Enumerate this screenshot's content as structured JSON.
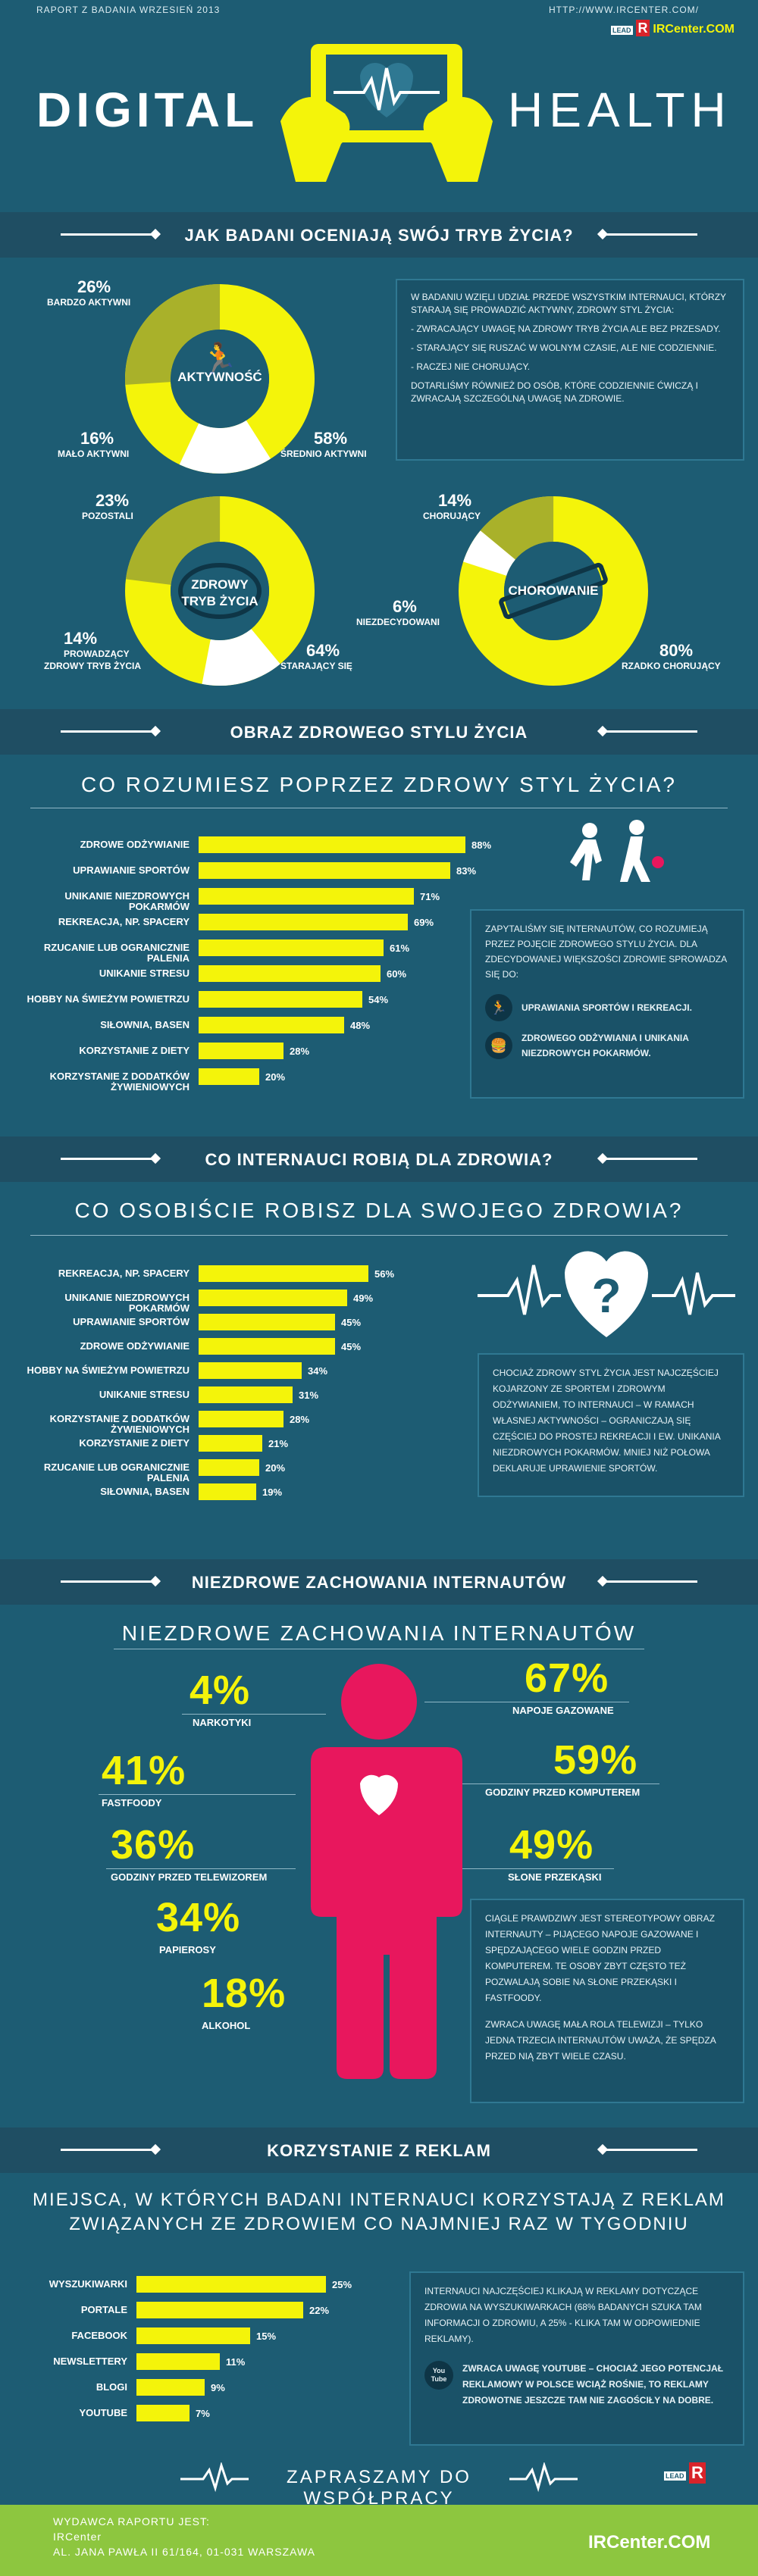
{
  "header": {
    "report_label": "RAPORT Z BADANIA WRZESIEŃ 2013",
    "url": "HTTP://WWW.IRCENTER.COM/",
    "lead": "LEAD",
    "brand": "IRCenter.COM",
    "title_left": "DIGITAL",
    "title_right": "HEALTH"
  },
  "colors": {
    "background": "#1d5c73",
    "accent": "#f4f40a",
    "green_olive": "#a9b12a",
    "heart_red": "#e8175d",
    "footer_green": "#8dc63f"
  },
  "section1": {
    "banner": "JAK BADANI OCENIAJĄ SWÓJ TRYB ŻYCIA?",
    "pie1": {
      "center_label": "AKTYWNOŚĆ",
      "slices": [
        {
          "pct": "26%",
          "label": "BARDZO AKTYWNI",
          "value": 26
        },
        {
          "pct": "16%",
          "label": "MAŁO AKTYWNI",
          "value": 16
        },
        {
          "pct": "58%",
          "label": "ŚREDNIO AKTYWNI",
          "value": 58
        }
      ]
    },
    "info_box": {
      "p1": "W BADANIU WZIĘLI UDZIAŁ PRZEDE  WSZYSTKIM INTERNAUCI, KTÓRZY STARAJĄ SIĘ PROWADZIĆ AKTYWNY, ZDROWY STYL ŻYCIA:",
      "p2": "- ZWRACAJĄCY UWAGĘ NA ZDROWY TRYB ŻYCIA ALE BEZ PRZESADY.",
      "p3": "- STARAJĄCY SIĘ RUSZAĆ W WOLNYM CZASIE, ALE NIE CODZIENNIE.",
      "p4": "- RACZEJ NIE CHORUJĄCY.",
      "p5": "DOTARLIŚMY RÓWNIEŻ DO OSÓB, KTÓRE CODZIENNIE ĆWICZĄ I ZWRACAJĄ SZCZEGÓLNĄ UWAGĘ NA ZDROWIE."
    },
    "pie2": {
      "center_label_1": "ZDROWY",
      "center_label_2": "TRYB ŻYCIA",
      "slices": [
        {
          "pct": "23%",
          "label": "POZOSTALI",
          "value": 23
        },
        {
          "pct": "14%",
          "label_1": "PROWADZĄCY",
          "label_2": "ZDROWY TRYB ŻYCIA",
          "value": 14
        },
        {
          "pct": "64%",
          "label": "STARAJĄCY SIĘ",
          "value": 64
        }
      ]
    },
    "pie3": {
      "center_label": "CHOROWANIE",
      "slices": [
        {
          "pct": "14%",
          "label": "CHORUJĄCY",
          "value": 14
        },
        {
          "pct": "6%",
          "label": "NIEZDECYDOWANI",
          "value": 6
        },
        {
          "pct": "80%",
          "label": "RZADKO CHORUJĄCY",
          "value": 80
        }
      ]
    }
  },
  "section2": {
    "banner": "OBRAZ ZDROWEGO STYLU ŻYCIA",
    "subheading": "CO ROZUMIESZ POPRZEZ ZDROWY STYL ŻYCIA?",
    "info_box": {
      "text": "ZAPYTALIŚMY SIĘ INTERNAUTÓW, CO ROZUMIEJĄ PRZEZ POJĘCIE ZDROWEGO STYLU ŻYCIA. DLA ZDECYDOWANEJ WIĘKSZOŚCI ZDROWIE SPROWADZA SIĘ DO:",
      "item1": "UPRAWIANIA SPORTÓW I REKREACJI.",
      "item2": "ZDROWEGO ODŻYWIANIA I UNIKANIA NIEZDROWYCH POKARMÓW."
    }
  },
  "chart_data": [
    {
      "type": "bar",
      "orientation": "horizontal",
      "categories": [
        "ZDROWE ODŻYWIANIE",
        "UPRAWIANIE SPORTÓW",
        "UNIKANIE NIEZDROWYCH POKARMÓW",
        "REKREACJA, NP. SPACERY",
        "RZUCANIE LUB OGRANICZNIE PALENIA",
        "UNIKANIE STRESU",
        "HOBBY NA ŚWIEŻYM POWIETRZU",
        "SIŁOWNIA, BASEN",
        "KORZYSTANIE Z DIETY",
        "KORZYSTANIE Z DODATKÓW ŻYWIENIOWYCH"
      ],
      "values": [
        88,
        83,
        71,
        69,
        61,
        60,
        54,
        48,
        28,
        20
      ],
      "value_labels": [
        "88%",
        "83%",
        "71%",
        "69%",
        "61%",
        "60%",
        "54%",
        "48%",
        "28%",
        "20%"
      ],
      "xlim": [
        0,
        100
      ]
    },
    {
      "type": "bar",
      "orientation": "horizontal",
      "categories": [
        "REKREACJA, NP. SPACERY",
        "UNIKANIE NIEZDROWYCH POKARMÓW",
        "UPRAWIANIE SPORTÓW",
        "ZDROWE ODŻYWIANIE",
        "HOBBY NA ŚWIEŻYM POWIETRZU",
        "UNIKANIE STRESU",
        "KORZYSTANIE Z DODATKÓW ŻYWIENIOWYCH",
        "KORZYSTANIE Z DIETY",
        "RZUCANIE LUB OGRANICZNIE PALENIA",
        "SIŁOWNIA, BASEN"
      ],
      "values": [
        56,
        49,
        45,
        45,
        34,
        31,
        28,
        21,
        20,
        19
      ],
      "value_labels": [
        "56%",
        "49%",
        "45%",
        "45%",
        "34%",
        "31%",
        "28%",
        "21%",
        "20%",
        "19%"
      ],
      "xlim": [
        0,
        100
      ]
    },
    {
      "type": "bar",
      "orientation": "horizontal",
      "categories": [
        "WYSZUKIWARKI",
        "PORTALE",
        "FACEBOOK",
        "NEWSLETTERY",
        "BLOGI",
        "YOUTUBE"
      ],
      "values": [
        25,
        22,
        15,
        11,
        9,
        7
      ],
      "value_labels": [
        "25%",
        "22%",
        "15%",
        "11%",
        "9%",
        "7%"
      ],
      "xlim": [
        0,
        100
      ]
    }
  ],
  "section3": {
    "banner": "CO INTERNAUCI ROBIĄ DLA ZDROWIA?",
    "subheading": "CO OSOBIŚCIE ROBISZ DLA SWOJEGO ZDROWIA?",
    "info_box": "CHOCIAŻ ZDROWY STYL ŻYCIA JEST NAJCZĘŚCIEJ KOJARZONY ZE SPORTEM I ZDROWYM ODŻYWIANIEM, TO INTERNAUCI – W RAMACH WŁASNEJ AKTYWNOŚCI – OGRANICZAJĄ SIĘ CZĘŚCIEJ DO PROSTEJ REKREACJI I EW. UNIKANIA NIEZDROWYCH POKARMÓW. MNIEJ NIŻ POŁOWA DEKLARUJE UPRAWIENIE SPORTÓW."
  },
  "section4": {
    "banner": "NIEZDROWE ZACHOWANIA INTERNAUTÓW",
    "subheading": "NIEZDROWE ZACHOWANIA INTERNAUTÓW",
    "left": [
      {
        "pct": "4%",
        "label": "NARKOTYKI",
        "value": 4
      },
      {
        "pct": "41%",
        "label": "FASTFOODY",
        "value": 41
      },
      {
        "pct": "36%",
        "label": "GODZINY PRZED TELEWIZOREM",
        "value": 36
      },
      {
        "pct": "34%",
        "label": "PAPIEROSY",
        "value": 34
      },
      {
        "pct": "18%",
        "label": "ALKOHOL",
        "value": 18
      }
    ],
    "right": [
      {
        "pct": "67%",
        "label": "NAPOJE GAZOWANE",
        "value": 67
      },
      {
        "pct": "59%",
        "label": "GODZINY PRZED KOMPUTEREM",
        "value": 59
      },
      {
        "pct": "49%",
        "label": "SŁONE PRZEKĄSKI",
        "value": 49
      }
    ],
    "info_box_p1": "CIĄGLE PRAWDZIWY JEST STEREOTYPOWY OBRAZ INTERNAUTY – PIJĄCEGO NAPOJE GAZOWANE I SPĘDZAJĄCEGO WIELE GODZIN PRZED KOMPUTEREM. TE OSOBY ZBYT CZĘSTO TEŻ POZWALAJĄ SOBIE NA SŁONE PRZEKĄSKI I FASTFOODY.",
    "info_box_p2": "ZWRACA UWAGĘ MAŁA ROLA TELEWIZJI – TYLKO JEDNA TRZECIA INTERNAUTÓW UWAŻA, ŻE SPĘDZA PRZED NIĄ ZBYT WIELE CZASU."
  },
  "section5": {
    "banner": "KORZYSTANIE Z REKLAM",
    "subheading_1": "MIEJSCA, W KTÓRYCH BADANI INTERNAUCI KORZYSTAJĄ Z REKLAM",
    "subheading_2": "ZWIĄZANYCH ZE ZDROWIEM CO NAJMNIEJ RAZ W TYGODNIU",
    "info_box_p1": "INTERNAUCI NAJCZĘŚCIEJ KLIKAJĄ W REKLAMY DOTYCZĄCE ZDROWIA NA WYSZUKIWARKACH (68% BADANYCH SZUKA TAM INFORMACJI O ZDROWIU, A 25% - KLIKA TAM W ODPOWIEDNIE REKLAMY).",
    "info_box_p2": "ZWRACA UWAGĘ YOUTUBE – CHOCIAŻ JEGO POTENCJAŁ REKLAMOWY W POLSCE WCIĄŻ ROŚNIE, TO REKLAMY ZDROWOTNE JESZCZE TAM NIE ZAGOŚCIŁY NA DOBRE.",
    "youtube_icon_text": "You Tube"
  },
  "footer": {
    "cta": "ZAPRASZAMY DO WSPÓŁPRACY",
    "publisher_label": "WYDAWCA RAPORTU JEST:",
    "publisher_name": "IRCenter",
    "address": "AL. JANA PAWŁA II 61/164, 01-031 WARSZAWA",
    "brand": "IRCenter.COM",
    "lead": "LEAD"
  }
}
